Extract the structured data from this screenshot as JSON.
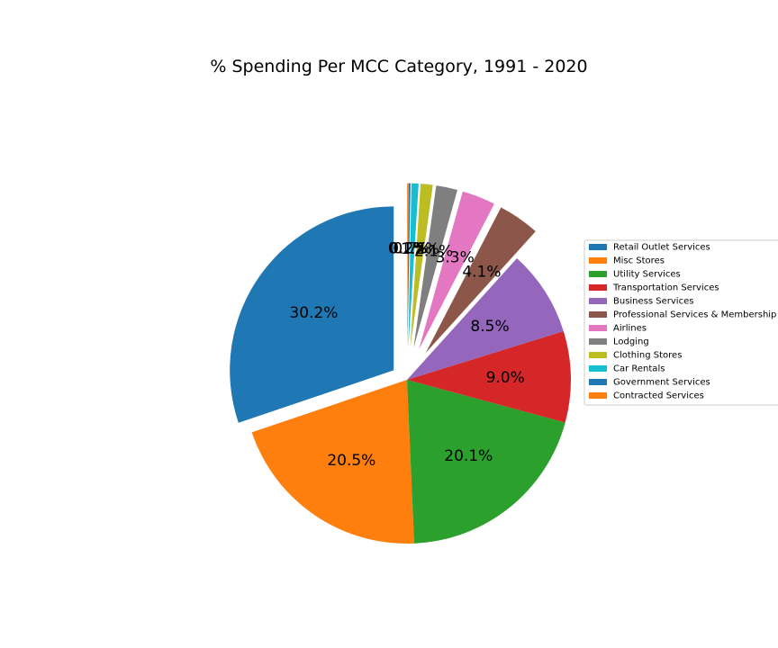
{
  "chart_data": {
    "type": "pie",
    "title": "% Spending Per MCC Category, 1991 - 2020",
    "legend_position": "right",
    "slices": [
      {
        "label": "Retail Outlet Services",
        "value": 30.2,
        "pct_label": "30.2%",
        "color": "#1f77b4",
        "exploded": true
      },
      {
        "label": "Misc Stores",
        "value": 20.5,
        "pct_label": "20.5%",
        "color": "#ff7f0e",
        "exploded": false
      },
      {
        "label": "Utility Services",
        "value": 20.1,
        "pct_label": "20.1%",
        "color": "#2ca02c",
        "exploded": false
      },
      {
        "label": "Transportation Services",
        "value": 9.0,
        "pct_label": "9.0%",
        "color": "#d62728",
        "exploded": false
      },
      {
        "label": "Business Services",
        "value": 8.5,
        "pct_label": "8.5%",
        "color": "#9467bd",
        "exploded": false
      },
      {
        "label": "Professional Services & Membership",
        "value": 4.1,
        "pct_label": "4.1%",
        "color": "#8c564b",
        "exploded": true
      },
      {
        "label": "Airlines",
        "value": 3.3,
        "pct_label": "3.3%",
        "color": "#e377c2",
        "exploded": true
      },
      {
        "label": "Lodging",
        "value": 2.1,
        "pct_label": "2.1%",
        "color": "#7f7f7f",
        "exploded": true
      },
      {
        "label": "Clothing Stores",
        "value": 1.2,
        "pct_label": "1.2%",
        "color": "#bcbd22",
        "exploded": true
      },
      {
        "label": "Car Rentals",
        "value": 0.7,
        "pct_label": "0.7%",
        "color": "#17becf",
        "exploded": true
      },
      {
        "label": "Government Services",
        "value": 0.2,
        "pct_label": "0.2%",
        "color": "#1f77b4",
        "exploded": true
      },
      {
        "label": "Contracted Services",
        "value": 0.1,
        "pct_label": "0.1%",
        "color": "#ff7f0e",
        "exploded": true
      }
    ]
  }
}
